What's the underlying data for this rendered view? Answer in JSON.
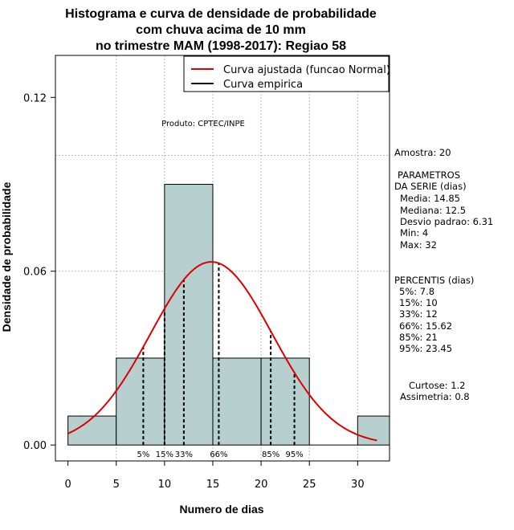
{
  "chart_data": {
    "type": "bar",
    "title_lines": [
      "Histograma e curva de densidade de probabilidade",
      "com chuva acima de 10 mm",
      "no trimestre MAM (1998-2017): Regiao 58"
    ],
    "xlabel": "Numero de dias",
    "ylabel": "Densidade de probabilidade",
    "xlim": [
      -1.3,
      33.3
    ],
    "ylim": [
      -0.0055,
      0.1345
    ],
    "x_ticks": [
      0,
      5,
      10,
      15,
      20,
      25,
      30
    ],
    "y_ticks": [
      0.0,
      0.06,
      0.12
    ],
    "y_tick_labels": [
      "0.00",
      "0.06",
      "0.12"
    ],
    "bins": [
      {
        "from": 0,
        "to": 5,
        "density": 0.01
      },
      {
        "from": 5,
        "to": 10,
        "density": 0.03
      },
      {
        "from": 10,
        "to": 15,
        "density": 0.09
      },
      {
        "from": 15,
        "to": 20,
        "density": 0.03
      },
      {
        "from": 20,
        "to": 25,
        "density": 0.03
      },
      {
        "from": 25,
        "to": 30,
        "density": 0.0
      },
      {
        "from": 30,
        "to": 35,
        "density": 0.01
      }
    ],
    "bar_color": "#b7cfcf",
    "normal_curve": {
      "mean": 14.85,
      "sd": 6.31,
      "from": 0,
      "to": 32,
      "color": "#dd0000"
    },
    "percentiles": [
      {
        "label": "5%",
        "value": 7.8
      },
      {
        "label": "15%",
        "value": 10
      },
      {
        "label": "33%",
        "value": 12
      },
      {
        "label": "66%",
        "value": 15.62
      },
      {
        "label": "85%",
        "value": 21
      },
      {
        "label": "95%",
        "value": 23.45
      }
    ],
    "grid_y": [
      0.06,
      0.1
    ],
    "grid_x": [
      5,
      10,
      15,
      20,
      25,
      30
    ],
    "legend": {
      "position": "top-right",
      "entries": [
        {
          "label": "Curva ajustada (funcao Normal)",
          "color": "#dd0000"
        },
        {
          "label": "Curva empirica",
          "color": "#000000"
        }
      ]
    },
    "annotation": "Produto: CPTEC/INPE"
  },
  "side_panel": {
    "amostra": "Amostra: 20",
    "params_title_1": "PARAMETROS",
    "params_title_2": "DA SERIE (dias)",
    "media": "Media: 14.85",
    "mediana": "Mediana: 12.5",
    "desvio": "Desvio padrao: 6.31",
    "min": "Min: 4",
    "max": "Max: 32",
    "percentis_title": "PERCENTIS (dias)",
    "p5": "5%: 7.8",
    "p15": "15%: 10",
    "p33": "33%: 12",
    "p66": "66%: 15.62",
    "p85": "85%: 21",
    "p95": "95%: 23.45",
    "curtose": "Curtose: 1.2",
    "assimetria": "Assimetria: 0.8"
  }
}
